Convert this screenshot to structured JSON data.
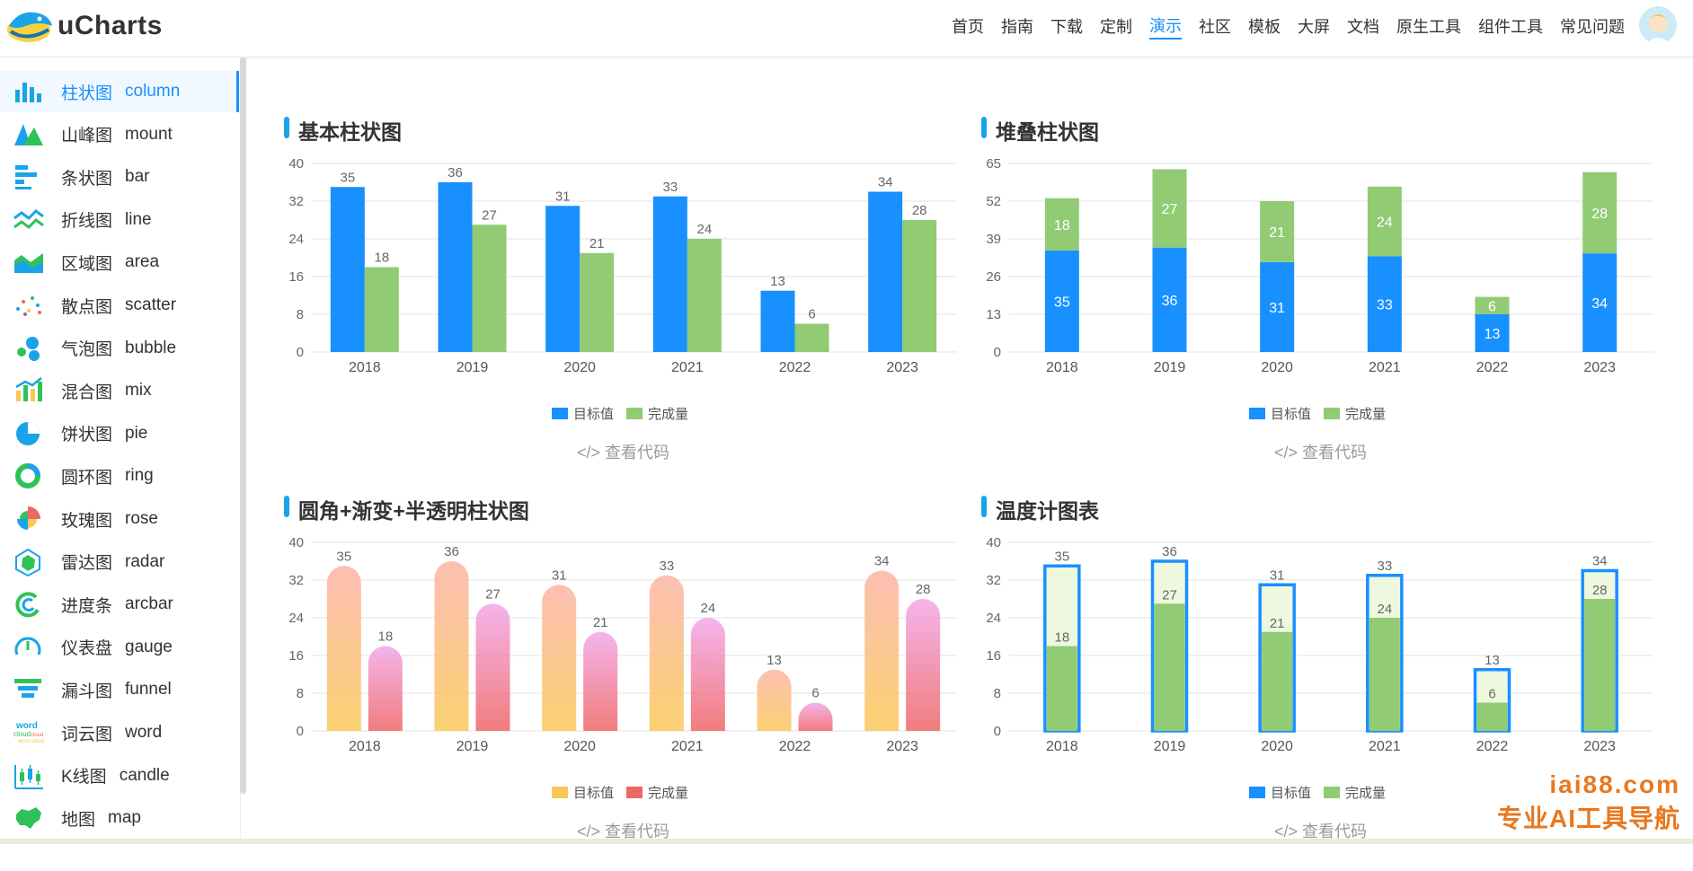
{
  "header": {
    "logo_text": "uCharts",
    "nav": [
      "首页",
      "指南",
      "下载",
      "定制",
      "演示",
      "社区",
      "模板",
      "大屏",
      "文档",
      "原生工具",
      "组件工具",
      "常见问题"
    ],
    "active_nav": "演示"
  },
  "sidebar": {
    "items": [
      {
        "cn": "柱状图",
        "en": "column",
        "icon": "column-chart-icon"
      },
      {
        "cn": "山峰图",
        "en": "mount",
        "icon": "mount-chart-icon"
      },
      {
        "cn": "条状图",
        "en": "bar",
        "icon": "bar-chart-icon"
      },
      {
        "cn": "折线图",
        "en": "line",
        "icon": "line-chart-icon"
      },
      {
        "cn": "区域图",
        "en": "area",
        "icon": "area-chart-icon"
      },
      {
        "cn": "散点图",
        "en": "scatter",
        "icon": "scatter-chart-icon"
      },
      {
        "cn": "气泡图",
        "en": "bubble",
        "icon": "bubble-chart-icon"
      },
      {
        "cn": "混合图",
        "en": "mix",
        "icon": "mix-chart-icon"
      },
      {
        "cn": "饼状图",
        "en": "pie",
        "icon": "pie-chart-icon"
      },
      {
        "cn": "圆环图",
        "en": "ring",
        "icon": "ring-chart-icon"
      },
      {
        "cn": "玫瑰图",
        "en": "rose",
        "icon": "rose-chart-icon"
      },
      {
        "cn": "雷达图",
        "en": "radar",
        "icon": "radar-chart-icon"
      },
      {
        "cn": "进度条",
        "en": "arcbar",
        "icon": "arcbar-chart-icon"
      },
      {
        "cn": "仪表盘",
        "en": "gauge",
        "icon": "gauge-chart-icon"
      },
      {
        "cn": "漏斗图",
        "en": "funnel",
        "icon": "funnel-chart-icon"
      },
      {
        "cn": "词云图",
        "en": "word",
        "icon": "word-cloud-icon"
      },
      {
        "cn": "K线图",
        "en": "candle",
        "icon": "candle-chart-icon"
      },
      {
        "cn": "地图",
        "en": "map",
        "icon": "map-chart-icon"
      }
    ]
  },
  "view_code_label": "</> 查看代码",
  "colors": {
    "blue": "#1890ff",
    "green": "#91cb74",
    "accent": "#1aa3e8",
    "grid": "#e0e0e0",
    "yellow": "#fac858",
    "red": "#ee6666",
    "pink_light": "#f3a7e8",
    "salmon": "#fbb4a6"
  },
  "watermark": {
    "line1": "iai88.com",
    "line2": "专业AI工具导航"
  },
  "chart_data": [
    {
      "type": "bar",
      "title": "基本柱状图",
      "categories": [
        "2018",
        "2019",
        "2020",
        "2021",
        "2022",
        "2023"
      ],
      "ylim": [
        0,
        40
      ],
      "yticks": [
        0,
        8,
        16,
        24,
        32,
        40
      ],
      "series": [
        {
          "name": "目标值",
          "values": [
            35,
            36,
            31,
            33,
            13,
            34
          ],
          "color": "#1890ff"
        },
        {
          "name": "完成量",
          "values": [
            18,
            27,
            21,
            24,
            6,
            28
          ],
          "color": "#91cb74"
        }
      ],
      "legend": "bottom",
      "grid": true
    },
    {
      "type": "bar",
      "stacked": true,
      "title": "堆叠柱状图",
      "categories": [
        "2018",
        "2019",
        "2020",
        "2021",
        "2022",
        "2023"
      ],
      "ylim": [
        0,
        65
      ],
      "yticks": [
        0,
        13,
        26,
        39,
        52,
        65
      ],
      "series": [
        {
          "name": "目标值",
          "values": [
            35,
            36,
            31,
            33,
            13,
            34
          ],
          "color": "#1890ff"
        },
        {
          "name": "完成量",
          "values": [
            18,
            27,
            21,
            24,
            6,
            28
          ],
          "color": "#91cb74"
        }
      ],
      "legend": "bottom",
      "grid": true
    },
    {
      "type": "bar",
      "title": "圆角+渐变+半透明柱状图",
      "categories": [
        "2018",
        "2019",
        "2020",
        "2021",
        "2022",
        "2023"
      ],
      "ylim": [
        0,
        40
      ],
      "yticks": [
        0,
        8,
        16,
        24,
        32,
        40
      ],
      "series": [
        {
          "name": "目标值",
          "values": [
            35,
            36,
            31,
            33,
            13,
            34
          ],
          "color": "#fac858"
        },
        {
          "name": "完成量",
          "values": [
            18,
            27,
            21,
            24,
            6,
            28
          ],
          "color": "#ee6666"
        }
      ],
      "legend": "bottom",
      "grid": true
    },
    {
      "type": "bar",
      "title": "温度计图表",
      "categories": [
        "2018",
        "2019",
        "2020",
        "2021",
        "2022",
        "2023"
      ],
      "ylim": [
        0,
        40
      ],
      "yticks": [
        0,
        8,
        16,
        24,
        32,
        40
      ],
      "series": [
        {
          "name": "目标值",
          "values": [
            35,
            36,
            31,
            33,
            13,
            34
          ],
          "color": "#1890ff"
        },
        {
          "name": "完成量",
          "values": [
            18,
            27,
            21,
            24,
            6,
            28
          ],
          "color": "#91cb74"
        }
      ],
      "legend": "bottom",
      "grid": true
    }
  ]
}
